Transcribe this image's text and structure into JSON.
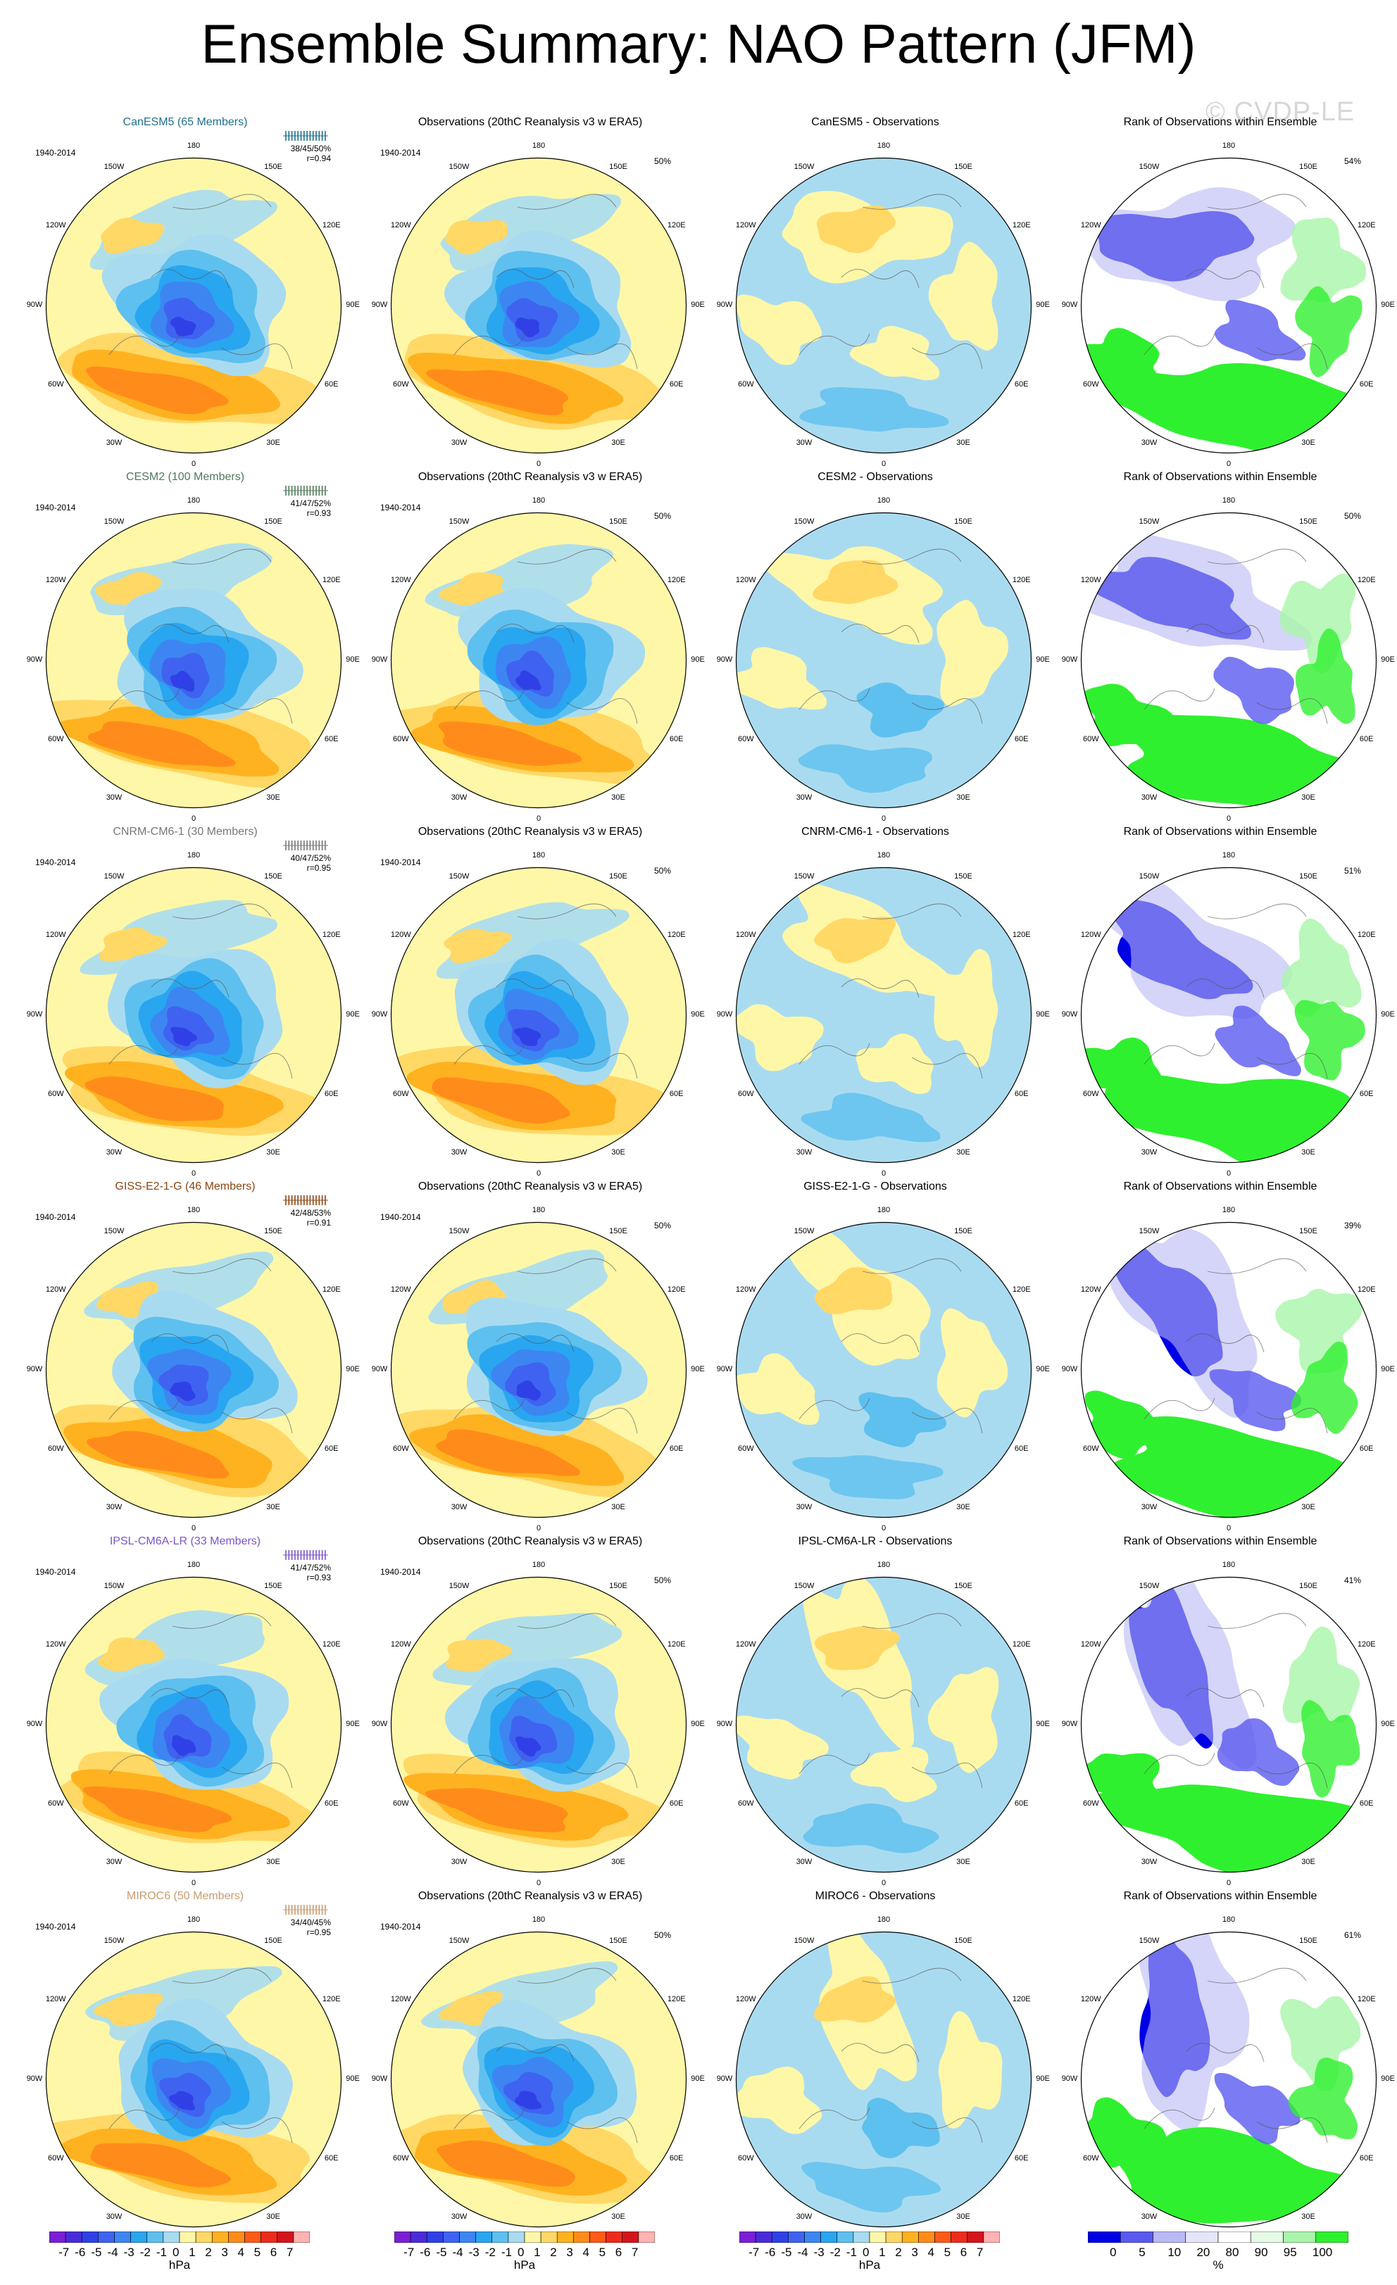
{
  "title": "Ensemble Summary: NAO Pattern (JFM)",
  "watermark": "© CVDP-LE",
  "period": "1940-2014",
  "obs_title": "Observations (20thC Reanalysis v3 w ERA5)",
  "obs_pct": "50%",
  "rank_title": "Rank of Observations within Ensemble",
  "lon_labels": [
    "180",
    "150E",
    "120E",
    "90E",
    "60E",
    "30E",
    "0",
    "30W",
    "60W",
    "90W",
    "120W",
    "150W"
  ],
  "rows": [
    {
      "model_title": "CanESM5 (65 Members)",
      "color": "#1f6f8b",
      "stats1": "38/45/50%",
      "stats2": "r=0.94",
      "diff_title": "CanESM5 - Observations",
      "rank_pct": "54%"
    },
    {
      "model_title": "CESM2 (100 Members)",
      "color": "#4f7a5a",
      "stats1": "41/47/52%",
      "stats2": "r=0.93",
      "diff_title": "CESM2 - Observations",
      "rank_pct": "50%"
    },
    {
      "model_title": "CNRM-CM6-1 (30 Members)",
      "color": "#777777",
      "stats1": "40/47/52%",
      "stats2": "r=0.95",
      "diff_title": "CNRM-CM6-1 - Observations",
      "rank_pct": "51%"
    },
    {
      "model_title": "GISS-E2-1-G (46 Members)",
      "color": "#8b4513",
      "stats1": "42/48/53%",
      "stats2": "r=0.91",
      "diff_title": "GISS-E2-1-G - Observations",
      "rank_pct": "39%"
    },
    {
      "model_title": "IPSL-CM6A-LR (33 Members)",
      "color": "#7b55c8",
      "stats1": "41/47/52%",
      "stats2": "r=0.93",
      "diff_title": "IPSL-CM6A-LR - Observations",
      "rank_pct": "41%"
    },
    {
      "model_title": "MIROC6 (50 Members)",
      "color": "#c89a6e",
      "stats1": "34/40/45%",
      "stats2": "r=0.95",
      "diff_title": "MIROC6 - Observations",
      "rank_pct": "61%"
    }
  ],
  "colorbar_hpa": {
    "ticks": [
      "-7",
      "-6",
      "-5",
      "-4",
      "-3",
      "-2",
      "-1",
      "0",
      "1",
      "2",
      "3",
      "4",
      "5",
      "6",
      "7"
    ],
    "unit": "hPa",
    "colors": [
      "#7a1fd6",
      "#4a2bd9",
      "#2f41e6",
      "#3f63f0",
      "#3d86f2",
      "#29a6f0",
      "#5ec0ef",
      "#a9dbf0",
      "#fff7a8",
      "#ffd866",
      "#ffb21f",
      "#ff8c1a",
      "#ff5a1a",
      "#ee2b1d",
      "#d4151c",
      "#ffb3b3"
    ]
  },
  "colorbar_pct": {
    "ticks": [
      "0",
      "5",
      "10",
      "20",
      "80",
      "90",
      "95",
      "100"
    ],
    "unit": "%",
    "colors": [
      "#0000e6",
      "#5a5af0",
      "#b9b9f5",
      "#e6e6fb",
      "#ffffff",
      "#e6fbe6",
      "#a9f5a9",
      "#2ff02f"
    ]
  }
}
